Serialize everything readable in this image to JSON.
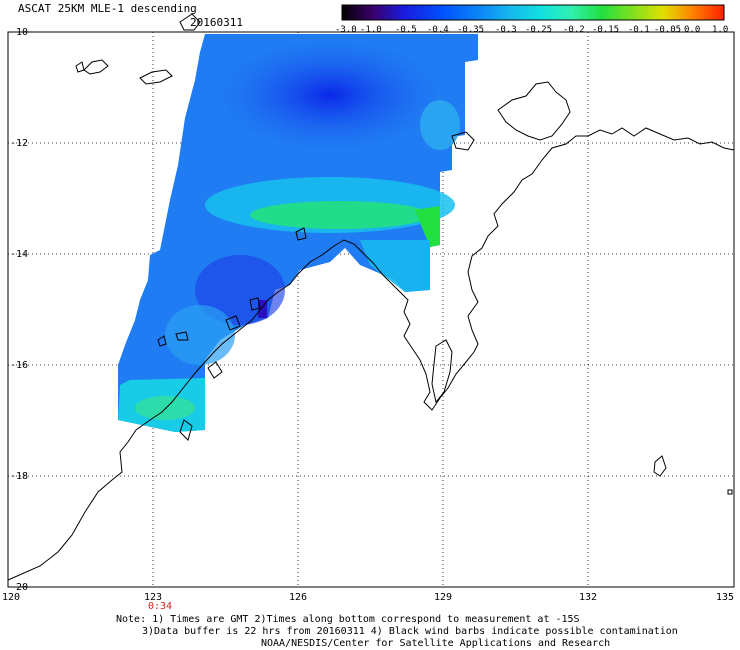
{
  "header": {
    "title": "ASCAT 25KM MLE-1 descending",
    "date": "20160311"
  },
  "colorbar": {
    "labels": [
      "-3.0",
      "-1.0",
      "-0.5",
      "-0.4",
      "-0.35",
      "-0.3",
      "-0.25",
      "-0.2",
      "-0.15",
      "-0.1",
      "-0.05",
      "0.0",
      "1.0"
    ],
    "colors": [
      "#000000",
      "#3a006a",
      "#1a1adc",
      "#0050ff",
      "#0b86f5",
      "#16b8ee",
      "#10e0e0",
      "#30f0b0",
      "#22e040",
      "#80e020",
      "#e0e000",
      "#ff8000",
      "#ff2000"
    ]
  },
  "axes": {
    "x_ticks": [
      "120",
      "123",
      "126",
      "129",
      "132",
      "135"
    ],
    "y_ticks": [
      "-10",
      "-12",
      "-14",
      "-16",
      "-18",
      "-20"
    ]
  },
  "time_label": "0:34",
  "notes": [
    "Note: 1) Times are GMT 2)Times along bottom correspond to measurement at -15S",
    "3)Data buffer is 22 hrs from 20160311 4) Black wind barbs indicate possible contamination",
    "NOAA/NESDIS/Center for Satellite Applications and Research"
  ]
}
